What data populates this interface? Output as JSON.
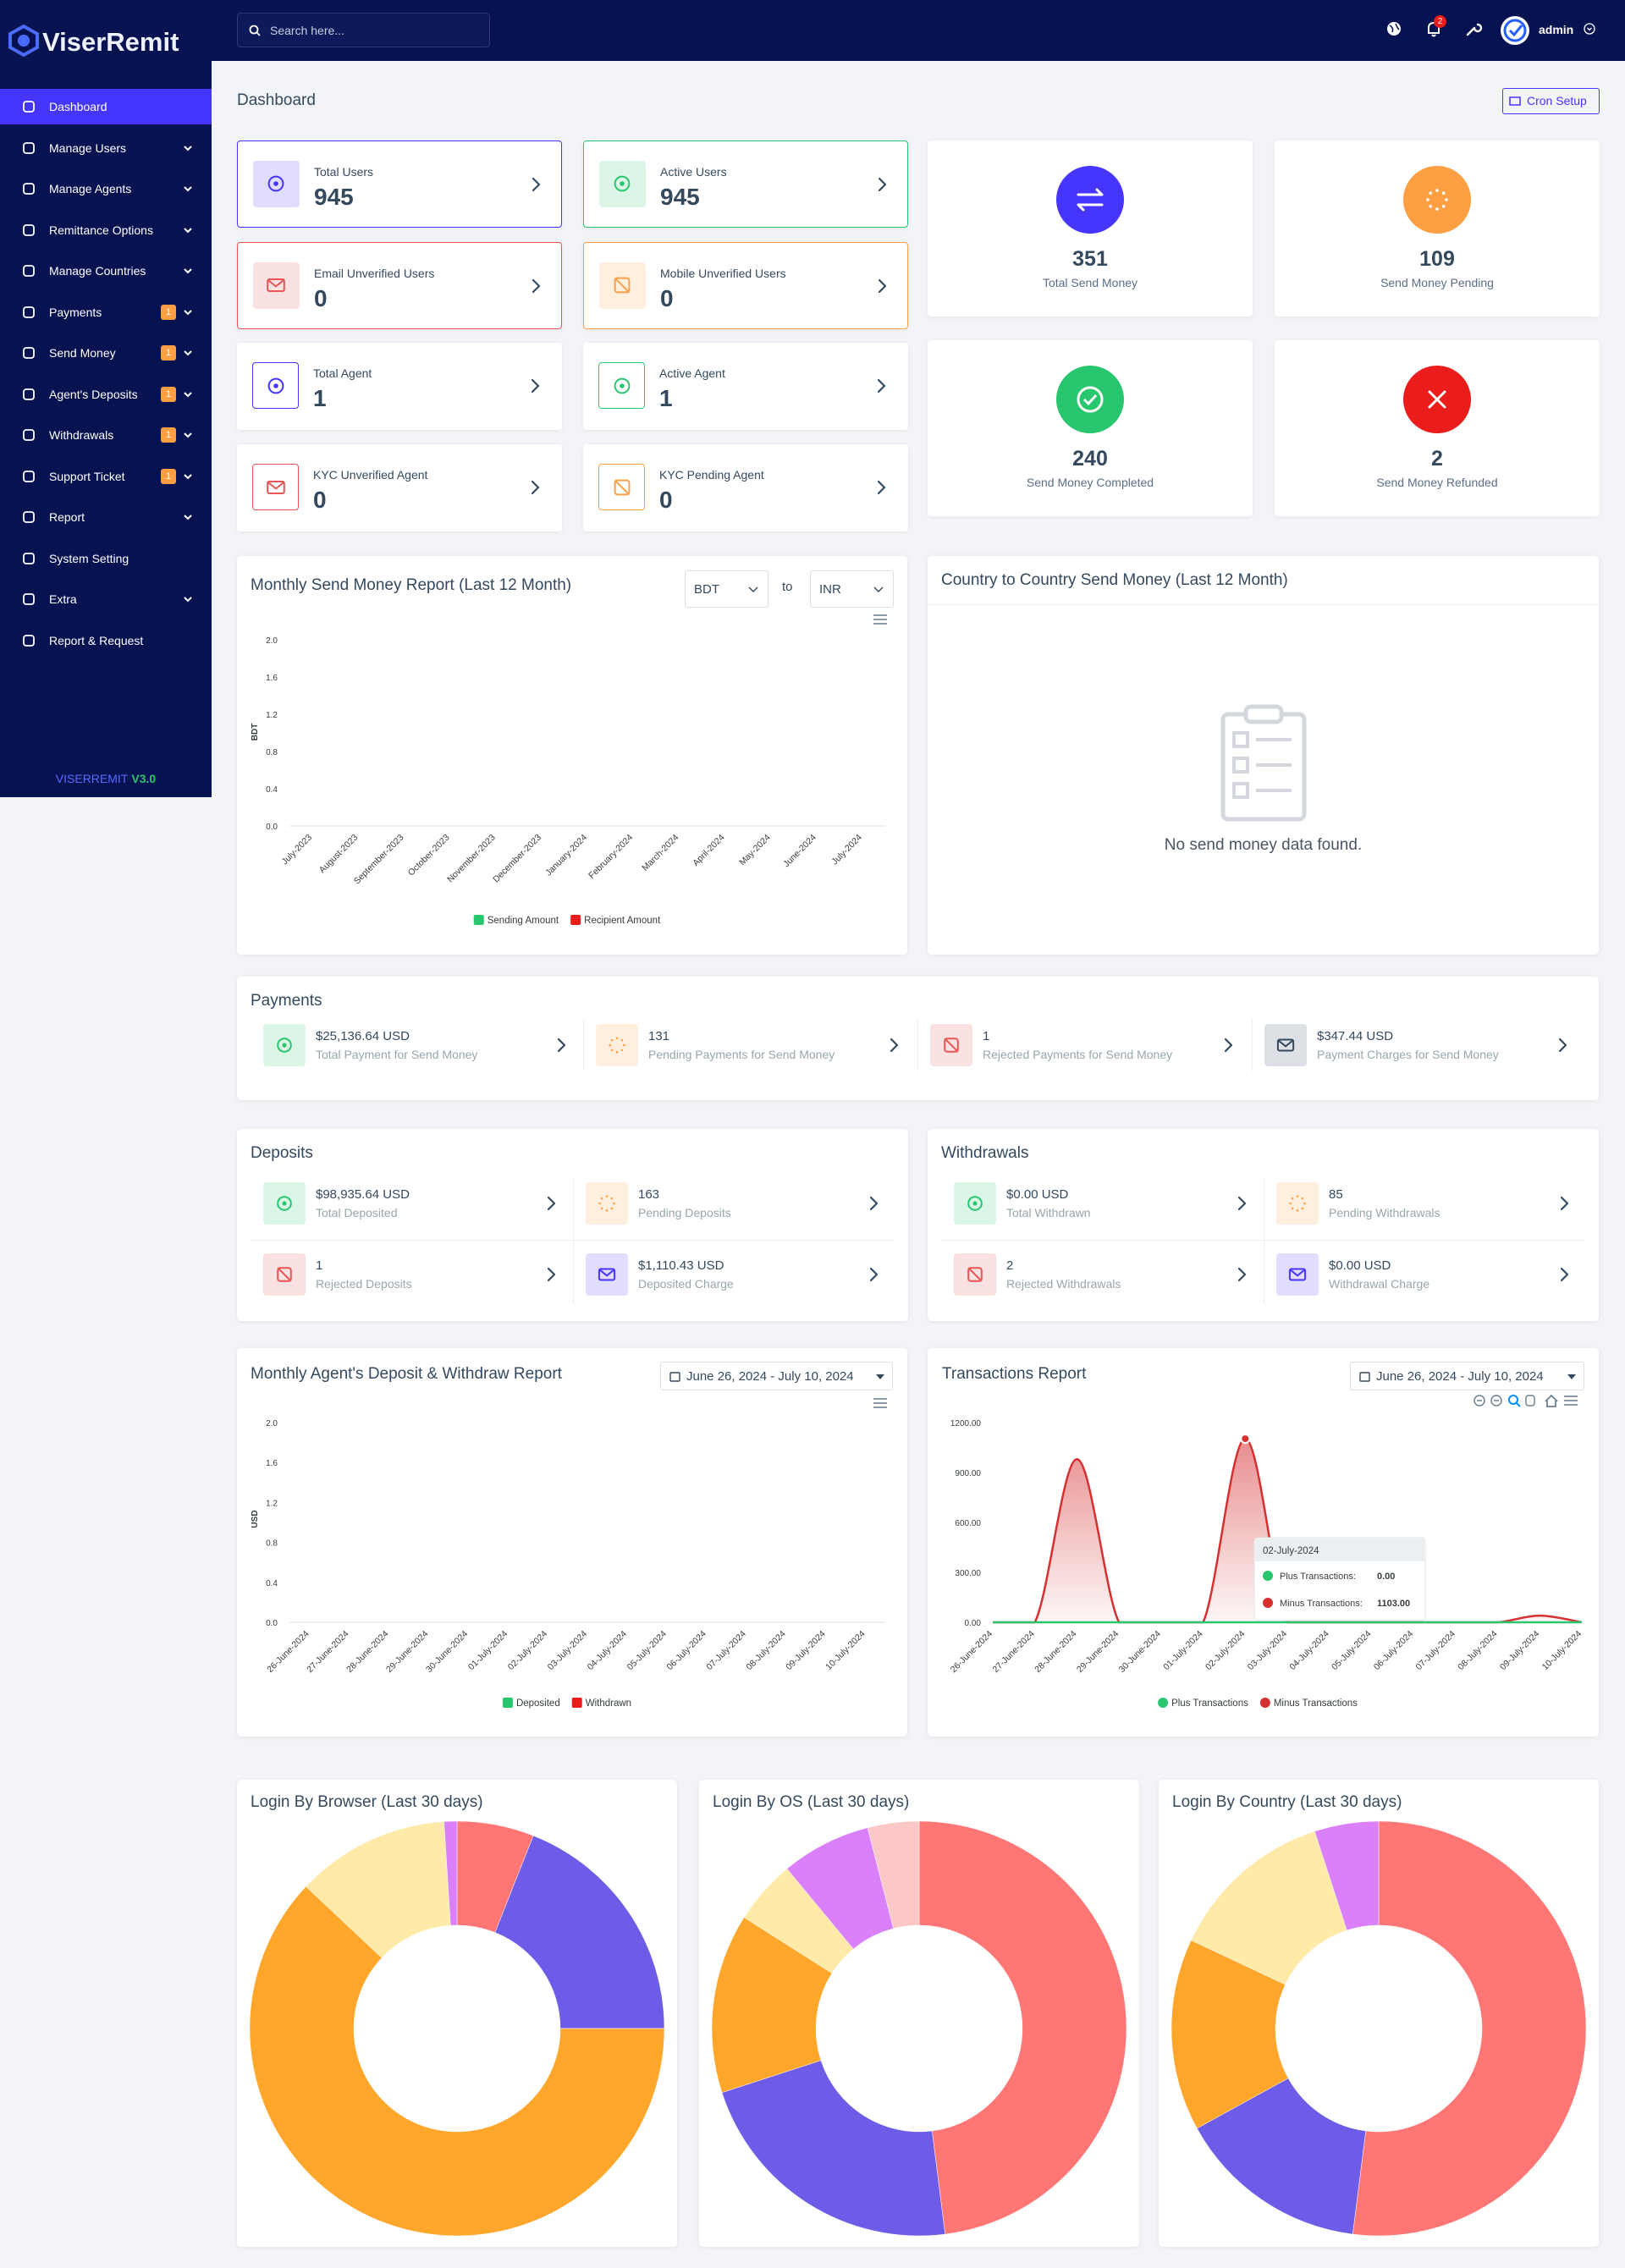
{
  "sidebar": {
    "brand": "ViserRemit",
    "menu": [
      {
        "label": "Dashboard",
        "active": true
      },
      {
        "label": "Manage Users",
        "submenu": true
      },
      {
        "label": "Manage Agents",
        "submenu": true
      },
      {
        "label": "Remittance Options",
        "submenu": true
      },
      {
        "label": "Manage Countries",
        "submenu": true
      },
      {
        "label": "Payments",
        "submenu": true,
        "badge": 1
      },
      {
        "label": "Send Money",
        "submenu": true,
        "badge": 1
      },
      {
        "label": "Agent's Deposits",
        "submenu": true,
        "badge": 1
      },
      {
        "label": "Withdrawals",
        "submenu": true,
        "badge": 1
      },
      {
        "label": "Support Ticket",
        "submenu": true,
        "badge": 1
      },
      {
        "label": "Report",
        "submenu": true
      },
      {
        "label": "System Setting"
      },
      {
        "label": "Extra",
        "submenu": true
      },
      {
        "label": "Report & Request"
      }
    ],
    "version_name": "VISERREMIT",
    "version": "V3.0"
  },
  "header": {
    "search_placeholder": "Search here...",
    "notification_count": 2,
    "username": "admin"
  },
  "page_title": "Dashboard",
  "cron_button": "Cron Setup",
  "user_widgets": [
    {
      "label": "Total Users",
      "value": 945
    },
    {
      "label": "Active Users",
      "value": 945
    },
    {
      "label": "Email Unverified Users",
      "value": 0
    },
    {
      "label": "Mobile Unverified Users",
      "value": 0
    },
    {
      "label": "Total Agent",
      "value": 1
    },
    {
      "label": "Active Agent",
      "value": 1
    },
    {
      "label": "KYC Unverified Agent",
      "value": 0
    },
    {
      "label": "KYC Pending Agent",
      "value": 0
    }
  ],
  "send_money_widgets": [
    {
      "value": 351,
      "label": "Total Send Money"
    },
    {
      "value": 109,
      "label": "Send Money Pending"
    },
    {
      "value": 240,
      "label": "Send Money Completed"
    },
    {
      "value": 2,
      "label": "Send Money Refunded"
    }
  ],
  "country_panel": {
    "title": "Country to Country Send Money (Last 12 Month)",
    "empty_message": "No send money data found."
  },
  "payments": {
    "title": "Payments",
    "items": [
      {
        "value": "$25,136.64 USD",
        "label": "Total Payment for Send Money"
      },
      {
        "value": "131",
        "label": "Pending Payments for Send Money"
      },
      {
        "value": "1",
        "label": "Rejected Payments for Send Money"
      },
      {
        "value": "$347.44 USD",
        "label": "Payment Charges for Send Money"
      }
    ]
  },
  "deposits": {
    "title": "Deposits",
    "items": [
      {
        "value": "$98,935.64 USD",
        "label": "Total Deposited"
      },
      {
        "value": "163",
        "label": "Pending Deposits"
      },
      {
        "value": "1",
        "label": "Rejected Deposits"
      },
      {
        "value": "$1,110.43 USD",
        "label": "Deposited Charge"
      }
    ]
  },
  "withdrawals": {
    "title": "Withdrawals",
    "items": [
      {
        "value": "$0.00 USD",
        "label": "Total Withdrawn"
      },
      {
        "value": "85",
        "label": "Pending Withdrawals"
      },
      {
        "value": "2",
        "label": "Rejected Withdrawals"
      },
      {
        "value": "$0.00 USD",
        "label": "Withdrawal Charge"
      }
    ]
  },
  "chart_data": [
    {
      "type": "bar",
      "title": "Monthly Send Money Report (Last 12 Month)",
      "from_currency": "BDT",
      "to_label": "to",
      "to_currency": "INR",
      "y_label": "BDT",
      "categories": [
        "July-2023",
        "August-2023",
        "September-2023",
        "October-2023",
        "November-2023",
        "December-2023",
        "January-2024",
        "February-2024",
        "March-2024",
        "April-2024",
        "May-2024",
        "June-2024",
        "July-2024"
      ],
      "ylim": [
        0,
        2
      ],
      "yticks": [
        {
          "value": 0,
          "label": "0.0"
        },
        0.4,
        0.8,
        1.2,
        1.6,
        {
          "value": 2,
          "label": "2.0"
        }
      ],
      "series": [
        {
          "name": "Sending Amount",
          "color": "#28c76f"
        },
        {
          "name": "Recipient Amount",
          "color": "#ea1c1c"
        }
      ]
    },
    {
      "type": "bar",
      "title": "Monthly Agent's Deposit & Withdraw Report",
      "date_range": "June 26, 2024 - July 10, 2024",
      "y_label": "USD",
      "categories": [
        "26-June-2024",
        "27-June-2024",
        "28-June-2024",
        "29-June-2024",
        "30-June-2024",
        "01-July-2024",
        "02-July-2024",
        "03-July-2024",
        "04-July-2024",
        "05-July-2024",
        "06-July-2024",
        "07-July-2024",
        "08-July-2024",
        "09-July-2024",
        "10-July-2024"
      ],
      "ylim": [
        0,
        2
      ],
      "yticks": [
        {
          "value": 0,
          "label": "0.0"
        },
        0.4,
        0.8,
        1.2,
        1.6,
        {
          "value": 2,
          "label": "2.0"
        }
      ],
      "series": [
        {
          "name": "Deposited",
          "color": "#28c76f"
        },
        {
          "name": "Withdrawn",
          "color": "#ea1c1c"
        }
      ]
    },
    {
      "type": "area",
      "title": "Transactions Report",
      "date_range": "June 26, 2024 - July 10, 2024",
      "categories": [
        "26-June-2024",
        "27-June-2024",
        "28-June-2024",
        "29-June-2024",
        "30-June-2024",
        "01-July-2024",
        "02-July-2024",
        "03-July-2024",
        "04-July-2024",
        "05-July-2024",
        "06-July-2024",
        "07-July-2024",
        "08-July-2024",
        "09-July-2024",
        "10-July-2024"
      ],
      "ylim": [
        0,
        1200
      ],
      "yticks": [
        {
          "value": 0,
          "label": "0.00"
        },
        {
          "value": 300,
          "label": "300.00"
        },
        {
          "value": 600,
          "label": "600.00"
        },
        {
          "value": 900,
          "label": "900.00"
        },
        {
          "value": 1200,
          "label": "1200.00"
        }
      ],
      "series": [
        {
          "name": "Plus Transactions",
          "color": "#28c76f",
          "values": [
            0,
            0,
            0,
            0,
            0,
            0,
            0,
            0,
            0,
            0,
            0,
            0,
            0,
            0,
            0
          ]
        },
        {
          "name": "Minus Transactions",
          "color": "#d63031",
          "values": [
            0,
            0,
            980,
            0,
            0,
            0,
            1103,
            0,
            0,
            0,
            0,
            0,
            0,
            40,
            0
          ]
        }
      ],
      "tooltip": {
        "title": "02-July-2024",
        "rows": [
          {
            "label": "Plus Transactions:",
            "value": "0.00"
          },
          {
            "label": "Minus Transactions:",
            "value": "1103.00"
          }
        ]
      }
    },
    {
      "type": "donut",
      "title": "Login By Browser (Last 30 days)",
      "values": [
        6,
        19,
        62,
        12,
        1
      ],
      "colors": [
        "#ff7675",
        "#6c5ce7",
        "#ffa62b",
        "#ffeaa7",
        "#d980fa"
      ]
    },
    {
      "type": "donut",
      "title": "Login By OS (Last 30 days)",
      "values": [
        48,
        22,
        14,
        5,
        7,
        4
      ],
      "colors": [
        "#ff7675",
        "#6c5ce7",
        "#ffa62b",
        "#ffeaa7",
        "#d980fa",
        "#fbc7c7"
      ]
    },
    {
      "type": "donut",
      "title": "Login By Country (Last 30 days)",
      "values": [
        52,
        15,
        15,
        13,
        5
      ],
      "colors": [
        "#ff7675",
        "#6c5ce7",
        "#ffa62b",
        "#ffeaa7",
        "#d980fa"
      ]
    }
  ]
}
